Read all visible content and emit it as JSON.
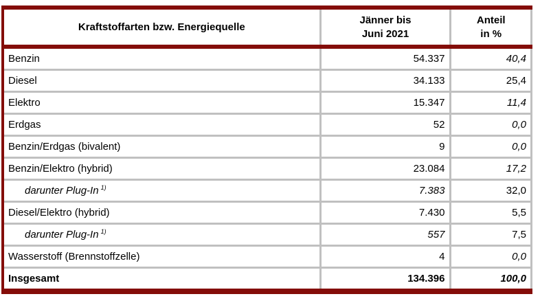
{
  "colors": {
    "border_red": "#840d09",
    "grid_gray": "#c0c0c0",
    "text": "#000000"
  },
  "table": {
    "header": {
      "col1": "Kraftstoffarten bzw. Energiequelle",
      "col2_line1": "Jänner bis",
      "col2_line2": "Juni 2021",
      "col3_line1": "Anteil",
      "col3_line2": "in %"
    },
    "rows": [
      {
        "label": "Benzin",
        "value": "54.337",
        "pct": "40,4",
        "pct_italic": true
      },
      {
        "label": "Diesel",
        "value": "34.133",
        "pct": "25,4",
        "pct_italic": false
      },
      {
        "label": "Elektro",
        "value": "15.347",
        "pct": "11,4",
        "pct_italic": true
      },
      {
        "label": "Erdgas",
        "value": "52",
        "pct": "0,0",
        "pct_italic": true
      },
      {
        "label": "Benzin/Erdgas (bivalent)",
        "value": "9",
        "pct": "0,0",
        "pct_italic": true
      },
      {
        "label": "Benzin/Elektro (hybrid)",
        "value": "23.084",
        "pct": "17,2",
        "pct_italic": true
      },
      {
        "label": "darunter Plug-In",
        "footnote_ref": "1)",
        "value": "7.383",
        "pct": "32,0",
        "indent": true,
        "label_italic": true,
        "value_italic": true,
        "pct_italic": false
      },
      {
        "label": "Diesel/Elektro (hybrid)",
        "value": "7.430",
        "pct": "5,5",
        "pct_italic": false
      },
      {
        "label": "darunter Plug-In",
        "footnote_ref": "1)",
        "value": "557",
        "pct": "7,5",
        "indent": true,
        "label_italic": true,
        "value_italic": true,
        "pct_italic": false
      },
      {
        "label": "Wasserstoff (Brennstoffzelle)",
        "value": "4",
        "pct": "0,0",
        "pct_italic": true
      },
      {
        "label": "Insgesamt",
        "value": "134.396",
        "pct": "100,0",
        "bold": true,
        "pct_italic": true
      }
    ]
  }
}
